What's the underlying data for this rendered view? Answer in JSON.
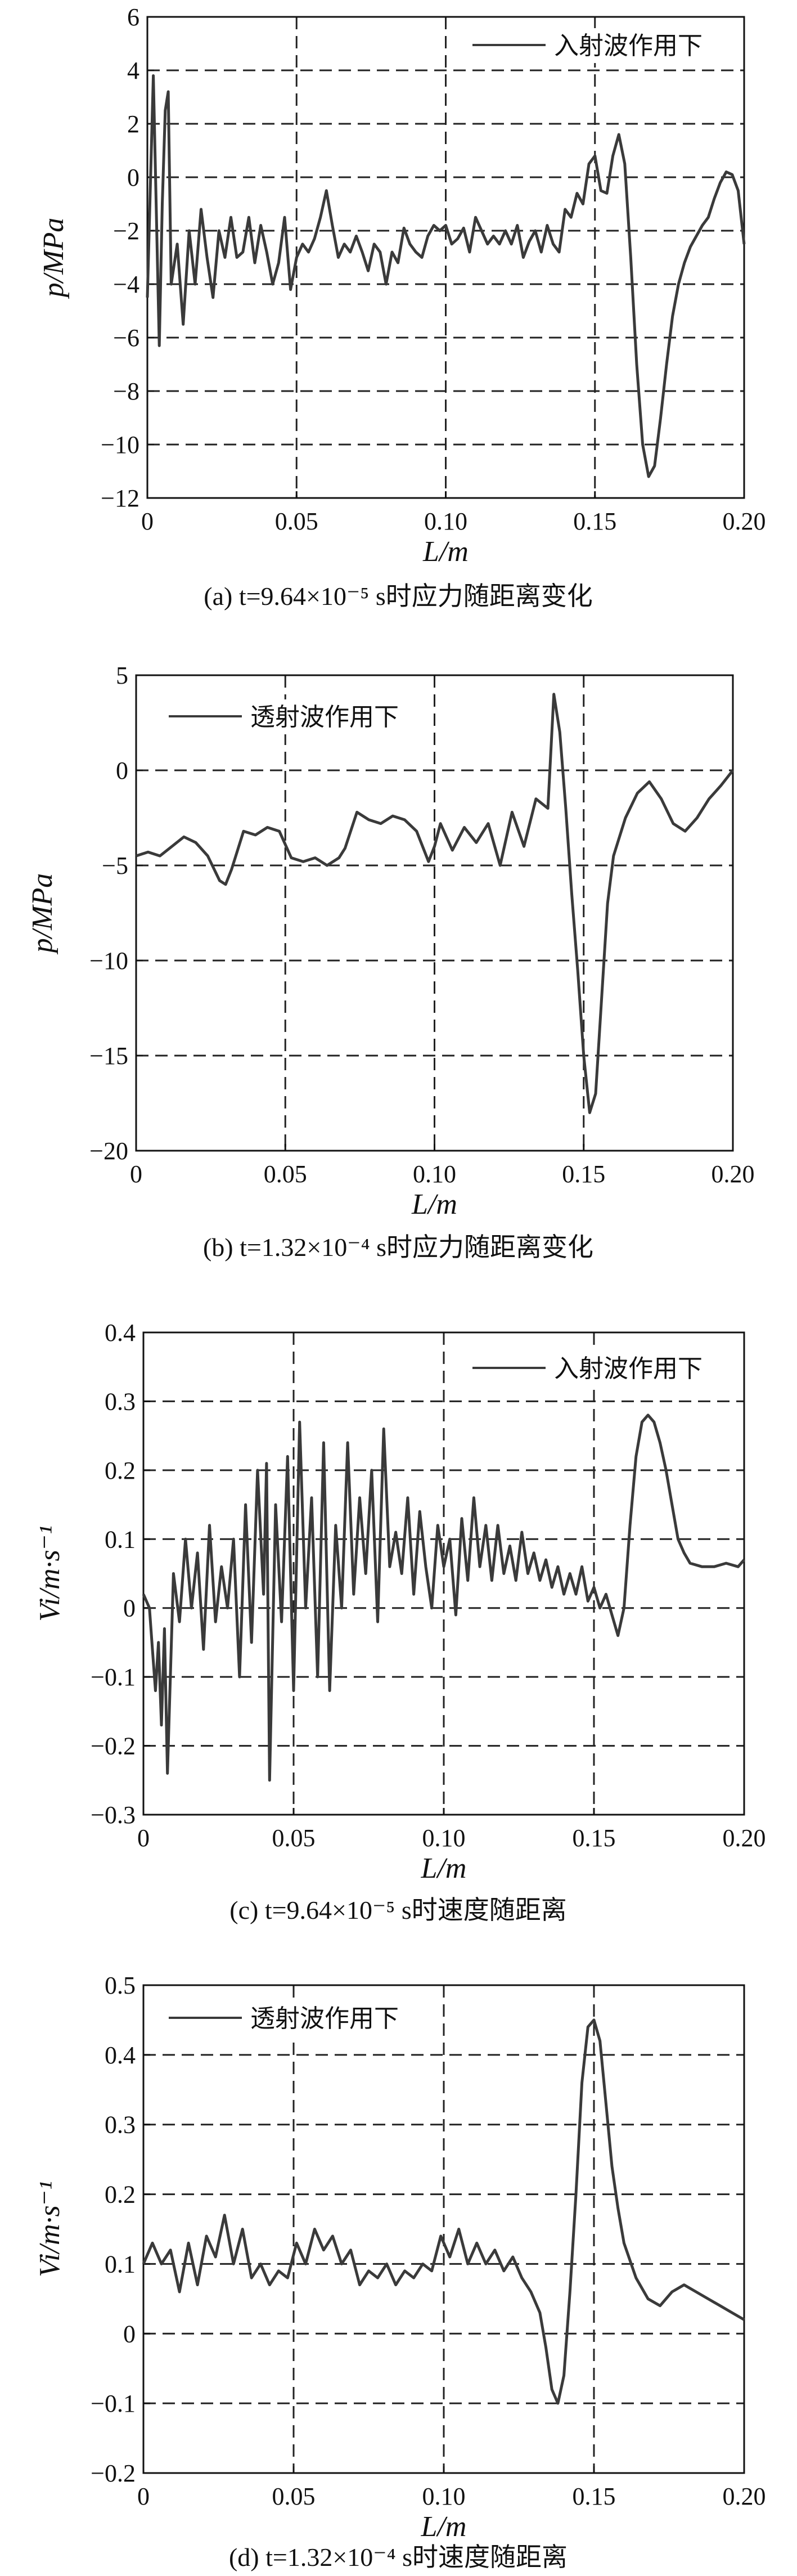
{
  "chart_data": [
    {
      "id": "a",
      "type": "line",
      "caption": "(a) t=9.64×10⁻⁵ s时应力随距离变化",
      "xlabel": "L/m",
      "ylabel": "p/MPa",
      "xlim": [
        0,
        0.2
      ],
      "ylim": [
        -12,
        6
      ],
      "xticks": [
        "0",
        "0.05",
        "0.10",
        "0.15",
        "0.20"
      ],
      "yticks": [
        "6",
        "4",
        "2",
        "0",
        "−2",
        "−4",
        "−6",
        "−8",
        "−10",
        "−12"
      ],
      "grid": true,
      "legend_position": "top-right",
      "series": [
        {
          "name": "入射波作用下",
          "color": "#3a3a3a",
          "x": [
            0.0,
            0.002,
            0.004,
            0.005,
            0.006,
            0.007,
            0.008,
            0.01,
            0.012,
            0.014,
            0.016,
            0.018,
            0.02,
            0.022,
            0.024,
            0.026,
            0.028,
            0.03,
            0.032,
            0.034,
            0.036,
            0.038,
            0.04,
            0.042,
            0.044,
            0.046,
            0.048,
            0.05,
            0.052,
            0.054,
            0.056,
            0.058,
            0.06,
            0.062,
            0.064,
            0.066,
            0.068,
            0.07,
            0.072,
            0.074,
            0.076,
            0.078,
            0.08,
            0.082,
            0.084,
            0.086,
            0.088,
            0.09,
            0.092,
            0.094,
            0.096,
            0.098,
            0.1,
            0.102,
            0.104,
            0.106,
            0.108,
            0.11,
            0.112,
            0.114,
            0.116,
            0.118,
            0.12,
            0.122,
            0.124,
            0.126,
            0.128,
            0.13,
            0.132,
            0.134,
            0.136,
            0.138,
            0.14,
            0.142,
            0.144,
            0.146,
            0.148,
            0.15,
            0.152,
            0.154,
            0.156,
            0.158,
            0.16,
            0.162,
            0.164,
            0.166,
            0.168,
            0.17,
            0.172,
            0.174,
            0.176,
            0.178,
            0.18,
            0.182,
            0.184,
            0.186,
            0.188,
            0.19,
            0.192,
            0.194,
            0.196,
            0.198,
            0.2
          ],
          "y": [
            -4.5,
            3.8,
            -6.3,
            -1,
            2.5,
            3.2,
            -4,
            -2.5,
            -5.5,
            -2,
            -4,
            -1.2,
            -3,
            -4.5,
            -2,
            -3,
            -1.5,
            -3,
            -2.8,
            -1.5,
            -3.2,
            -1.8,
            -2.8,
            -4,
            -3.2,
            -1.5,
            -4.2,
            -3,
            -2.5,
            -2.8,
            -2.3,
            -1.5,
            -0.5,
            -1.8,
            -3,
            -2.5,
            -2.8,
            -2.2,
            -2.8,
            -3.5,
            -2.5,
            -2.8,
            -4,
            -2.8,
            -3.2,
            -1.9,
            -2.5,
            -2.8,
            -3,
            -2.2,
            -1.8,
            -2,
            -1.8,
            -2.5,
            -2.3,
            -1.9,
            -2.8,
            -1.5,
            -2,
            -2.5,
            -2.2,
            -2.5,
            -2,
            -2.5,
            -1.8,
            -3,
            -2.4,
            -2,
            -2.8,
            -1.8,
            -2.5,
            -2.8,
            -1.2,
            -1.5,
            -0.6,
            -1,
            0.5,
            0.8,
            -0.5,
            -0.6,
            0.8,
            1.6,
            0.5,
            -3,
            -7,
            -10,
            -11.2,
            -10.8,
            -9,
            -7,
            -5.2,
            -4,
            -3.2,
            -2.6,
            -2.2,
            -1.8,
            -1.5,
            -0.8,
            -0.2,
            0.2,
            0.1,
            -0.5,
            -2.5
          ]
        }
      ]
    },
    {
      "id": "b",
      "type": "line",
      "caption": "(b) t=1.32×10⁻⁴ s时应力随距离变化",
      "xlabel": "L/m",
      "ylabel": "p/MPa",
      "xlim": [
        0,
        0.2
      ],
      "ylim": [
        -20,
        5
      ],
      "xticks": [
        "0",
        "0.05",
        "0.10",
        "0.15",
        "0.20"
      ],
      "yticks": [
        "5",
        "0",
        "−5",
        "−10",
        "−15",
        "−20"
      ],
      "grid": true,
      "legend_position": "top-left",
      "series": [
        {
          "name": "透射波作用下",
          "color": "#3a3a3a",
          "x": [
            0.0,
            0.004,
            0.008,
            0.012,
            0.016,
            0.02,
            0.024,
            0.028,
            0.03,
            0.032,
            0.036,
            0.04,
            0.044,
            0.048,
            0.052,
            0.056,
            0.06,
            0.064,
            0.068,
            0.07,
            0.074,
            0.078,
            0.082,
            0.086,
            0.09,
            0.094,
            0.098,
            0.1,
            0.102,
            0.106,
            0.11,
            0.114,
            0.118,
            0.122,
            0.126,
            0.13,
            0.134,
            0.138,
            0.14,
            0.142,
            0.144,
            0.146,
            0.148,
            0.15,
            0.152,
            0.154,
            0.156,
            0.158,
            0.16,
            0.162,
            0.164,
            0.168,
            0.172,
            0.176,
            0.18,
            0.184,
            0.188,
            0.192,
            0.196,
            0.2
          ],
          "y": [
            -4.5,
            -4.3,
            -4.5,
            -4,
            -3.5,
            -3.8,
            -4.5,
            -5.8,
            -6,
            -5.2,
            -3.2,
            -3.4,
            -3,
            -3.2,
            -4.6,
            -4.8,
            -4.6,
            -5,
            -4.6,
            -4.1,
            -2.2,
            -2.6,
            -2.8,
            -2.4,
            -2.6,
            -3.2,
            -4.8,
            -4,
            -2.8,
            -4.2,
            -3,
            -3.8,
            -2.8,
            -5,
            -2.2,
            -4,
            -1.5,
            -2,
            4.0,
            2,
            -2,
            -6.5,
            -10.5,
            -15,
            -18,
            -17,
            -12,
            -7,
            -4.5,
            -3.5,
            -2.5,
            -1.2,
            -0.6,
            -1.5,
            -2.8,
            -3.2,
            -2.5,
            -1.5,
            -0.8,
            0.0
          ]
        }
      ]
    },
    {
      "id": "c",
      "type": "line",
      "caption": "(c) t=9.64×10⁻⁵ s时速度随距离",
      "xlabel": "L/m",
      "ylabel": "Vi/m·s⁻¹",
      "xlim": [
        0,
        0.2
      ],
      "ylim": [
        -0.3,
        0.4
      ],
      "xticks": [
        "0",
        "0.05",
        "0.10",
        "0.15",
        "0.20"
      ],
      "yticks": [
        "0.4",
        "0.3",
        "0.2",
        "0.1",
        "0",
        "−0.1",
        "−0.2",
        "−0.3"
      ],
      "grid": true,
      "legend_position": "top-right",
      "series": [
        {
          "name": "入射波作用下",
          "color": "#3a3a3a",
          "x": [
            0.0,
            0.002,
            0.003,
            0.004,
            0.005,
            0.006,
            0.007,
            0.008,
            0.01,
            0.012,
            0.014,
            0.016,
            0.018,
            0.02,
            0.022,
            0.024,
            0.026,
            0.028,
            0.03,
            0.032,
            0.034,
            0.036,
            0.038,
            0.04,
            0.041,
            0.042,
            0.044,
            0.046,
            0.048,
            0.05,
            0.052,
            0.054,
            0.056,
            0.058,
            0.06,
            0.062,
            0.064,
            0.066,
            0.068,
            0.07,
            0.072,
            0.074,
            0.076,
            0.078,
            0.08,
            0.082,
            0.084,
            0.086,
            0.088,
            0.09,
            0.092,
            0.094,
            0.096,
            0.098,
            0.1,
            0.102,
            0.104,
            0.106,
            0.108,
            0.11,
            0.112,
            0.114,
            0.116,
            0.118,
            0.12,
            0.122,
            0.124,
            0.126,
            0.128,
            0.13,
            0.132,
            0.134,
            0.136,
            0.138,
            0.14,
            0.142,
            0.144,
            0.146,
            0.148,
            0.15,
            0.152,
            0.154,
            0.156,
            0.158,
            0.16,
            0.162,
            0.164,
            0.166,
            0.168,
            0.17,
            0.172,
            0.174,
            0.176,
            0.178,
            0.18,
            0.182,
            0.186,
            0.19,
            0.194,
            0.198,
            0.2
          ],
          "y": [
            0.02,
            0.0,
            -0.06,
            -0.12,
            -0.05,
            -0.17,
            -0.03,
            -0.24,
            0.05,
            -0.02,
            0.1,
            0.0,
            0.08,
            -0.06,
            0.12,
            -0.02,
            0.06,
            0.0,
            0.1,
            -0.1,
            0.15,
            -0.05,
            0.2,
            0.02,
            0.21,
            -0.25,
            0.15,
            -0.02,
            0.22,
            -0.12,
            0.27,
            0.0,
            0.16,
            -0.1,
            0.24,
            -0.12,
            0.12,
            0.0,
            0.24,
            0.02,
            0.16,
            0.05,
            0.2,
            -0.02,
            0.26,
            0.06,
            0.11,
            0.05,
            0.16,
            0.02,
            0.14,
            0.06,
            0.0,
            0.12,
            0.06,
            0.1,
            -0.01,
            0.13,
            0.04,
            0.16,
            0.06,
            0.12,
            0.04,
            0.12,
            0.05,
            0.09,
            0.04,
            0.11,
            0.05,
            0.08,
            0.04,
            0.07,
            0.03,
            0.06,
            0.02,
            0.05,
            0.02,
            0.06,
            0.01,
            0.03,
            0.0,
            0.02,
            -0.01,
            -0.04,
            0.0,
            0.12,
            0.22,
            0.27,
            0.28,
            0.27,
            0.24,
            0.2,
            0.15,
            0.1,
            0.08,
            0.065,
            0.06,
            0.06,
            0.065,
            0.06,
            0.07
          ]
        }
      ]
    },
    {
      "id": "d",
      "type": "line",
      "caption": "(d) t=1.32×10⁻⁴ s时速度随距离",
      "xlabel": "L/m",
      "ylabel": "Vi/m·s⁻¹",
      "xlim": [
        0,
        0.2
      ],
      "ylim": [
        -0.2,
        0.5
      ],
      "xticks": [
        "0",
        "0.05",
        "0.10",
        "0.15",
        "0.20"
      ],
      "yticks": [
        "0.5",
        "0.4",
        "0.3",
        "0.2",
        "0.1",
        "0",
        "−0.1",
        "−0.2"
      ],
      "grid": true,
      "legend_position": "top-left",
      "series": [
        {
          "name": "透射波作用下",
          "color": "#3a3a3a",
          "x": [
            0.0,
            0.003,
            0.006,
            0.009,
            0.012,
            0.015,
            0.018,
            0.021,
            0.024,
            0.027,
            0.03,
            0.033,
            0.036,
            0.039,
            0.042,
            0.045,
            0.048,
            0.051,
            0.054,
            0.057,
            0.06,
            0.063,
            0.066,
            0.069,
            0.072,
            0.075,
            0.078,
            0.081,
            0.084,
            0.087,
            0.09,
            0.093,
            0.096,
            0.099,
            0.102,
            0.105,
            0.108,
            0.111,
            0.114,
            0.117,
            0.12,
            0.123,
            0.126,
            0.129,
            0.132,
            0.134,
            0.136,
            0.138,
            0.14,
            0.142,
            0.144,
            0.146,
            0.148,
            0.15,
            0.152,
            0.154,
            0.156,
            0.158,
            0.16,
            0.164,
            0.168,
            0.172,
            0.176,
            0.18,
            0.184,
            0.188,
            0.192,
            0.196,
            0.2
          ],
          "y": [
            0.1,
            0.13,
            0.1,
            0.12,
            0.06,
            0.13,
            0.07,
            0.14,
            0.11,
            0.17,
            0.1,
            0.15,
            0.08,
            0.1,
            0.07,
            0.09,
            0.08,
            0.13,
            0.1,
            0.15,
            0.12,
            0.14,
            0.1,
            0.12,
            0.07,
            0.09,
            0.08,
            0.1,
            0.07,
            0.09,
            0.08,
            0.1,
            0.09,
            0.14,
            0.11,
            0.15,
            0.1,
            0.13,
            0.1,
            0.12,
            0.09,
            0.11,
            0.08,
            0.06,
            0.03,
            -0.02,
            -0.08,
            -0.1,
            -0.06,
            0.06,
            0.2,
            0.36,
            0.44,
            0.45,
            0.42,
            0.33,
            0.24,
            0.18,
            0.13,
            0.08,
            0.05,
            0.04,
            0.06,
            0.07,
            0.06,
            0.05,
            0.04,
            0.03,
            0.02
          ]
        }
      ]
    }
  ]
}
